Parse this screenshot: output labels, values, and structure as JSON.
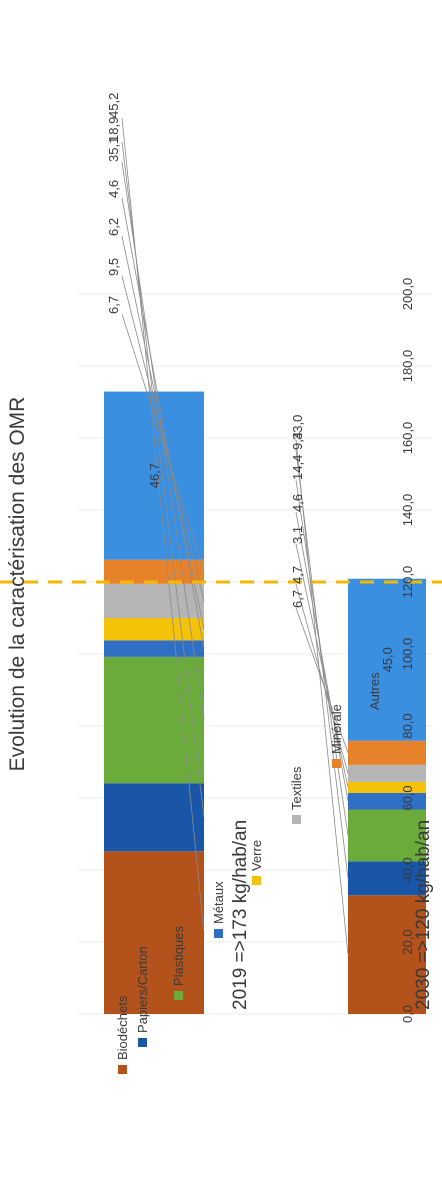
{
  "chart_data": {
    "type": "bar",
    "stacked": true,
    "title": "Evolution de la caractérisation des OMR",
    "categories": [
      "2019 =>173 kg/hab/an",
      "2030 =>120 kg/hab/an"
    ],
    "ylim": [
      0,
      200
    ],
    "yticks": [
      "0,0",
      "20,0",
      "40,0",
      "60,0",
      "80,0",
      "100,0",
      "120,0",
      "140,0",
      "160,0",
      "180,0",
      "200,0"
    ],
    "grid": true,
    "reference_line": {
      "value": 120,
      "color": "#f5b800",
      "style": "dashed"
    },
    "legend_position": "center",
    "series": [
      {
        "name": "Biodéchets",
        "color": "#b4521c",
        "values": [
          45.2,
          33.0
        ],
        "labels": [
          "45,2",
          "33,0"
        ]
      },
      {
        "name": "Papiers/Carton",
        "color": "#1a56a8",
        "values": [
          18.9,
          9.4
        ],
        "labels": [
          "18,9",
          "9,4"
        ]
      },
      {
        "name": "Plastiques",
        "color": "#6aab3c",
        "values": [
          35.1,
          14.4
        ],
        "labels": [
          "35,1",
          "14,4"
        ]
      },
      {
        "name": "Métaux",
        "color": "#2f6fc4",
        "values": [
          4.6,
          4.6
        ],
        "labels": [
          "4,6",
          "4,6"
        ]
      },
      {
        "name": "Verre",
        "color": "#f5c20a",
        "values": [
          6.2,
          3.1
        ],
        "labels": [
          "6,2",
          "3,1"
        ]
      },
      {
        "name": "Textiles",
        "color": "#b5b5b5",
        "values": [
          9.5,
          4.7
        ],
        "labels": [
          "9,5",
          "4,7"
        ]
      },
      {
        "name": "Minérale",
        "color": "#e8822a",
        "values": [
          6.7,
          6.7
        ],
        "labels": [
          "6,7",
          "6,7"
        ]
      },
      {
        "name": "Autres",
        "color": "#3b8fe0",
        "values": [
          46.7,
          45.0
        ],
        "labels": [
          "46,7",
          "45,0"
        ]
      }
    ]
  }
}
